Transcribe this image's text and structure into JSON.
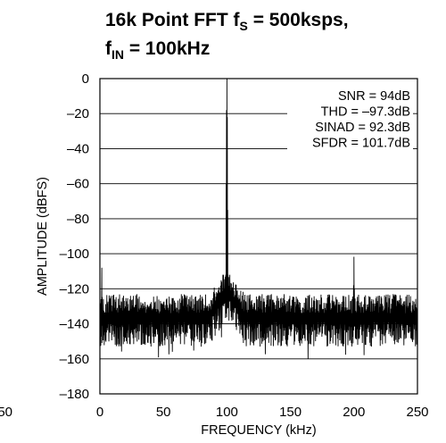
{
  "chart_data": {
    "type": "line",
    "title_main": "16k Point FFT f",
    "title_sub_s": "S",
    "title_rest": " = 500ksps,",
    "title_line2_f": "f",
    "title_line2_sub": "IN",
    "title_line2_rest": " = 100kHz",
    "xlabel": "FREQUENCY (kHz)",
    "ylabel": "AMPLITUDE (dBFS)",
    "xlim": [
      0,
      250
    ],
    "ylim": [
      -180,
      0
    ],
    "x_ticks": [
      0,
      50,
      100,
      150,
      200,
      250
    ],
    "y_ticks": [
      0,
      -20,
      -40,
      -60,
      -80,
      -100,
      -120,
      -140,
      -160,
      -180
    ],
    "x_tick_labels": [
      "0",
      "50",
      "100",
      "150",
      "200",
      "250"
    ],
    "y_tick_labels": [
      "0",
      "–20",
      "–40",
      "–60",
      "–80",
      "–100",
      "–120",
      "–140",
      "–160",
      "–180"
    ],
    "left_edge_fragment": "50",
    "grid": "horizontal",
    "series": [
      {
        "noise_floor_center": -137,
        "noise_floor_min": -171,
        "noise_floor_max": -124,
        "fundamental": {
          "x": 100,
          "y": 0
        },
        "harmonics": [
          {
            "x": 200,
            "y": -101.7
          }
        ],
        "spurs": [
          {
            "x": 1.5,
            "y": -108
          }
        ]
      }
    ],
    "annotations": [
      "SNR = 94dB",
      "THD = –97.3dB",
      "SINAD = 92.3dB",
      "SFDR = 101.7dB"
    ]
  }
}
